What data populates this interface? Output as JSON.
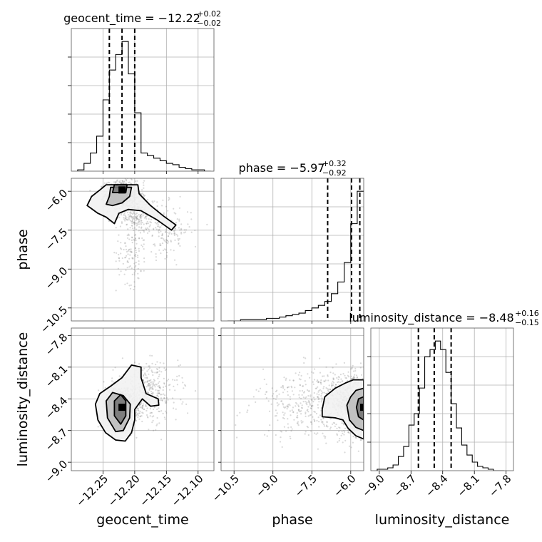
{
  "chart_data": {
    "type": "corner",
    "parameters": [
      "geocent_time",
      "phase",
      "luminosity_distance"
    ],
    "axis_labels": {
      "geocent_time": "geocent_time",
      "phase": "phase",
      "luminosity_distance": "luminosity_distance"
    },
    "ranges": {
      "geocent_time": [
        -12.3,
        -12.075
      ],
      "phase": [
        -11.0,
        -5.5
      ],
      "luminosity_distance": [
        -9.08,
        -7.73
      ]
    },
    "ticks": {
      "geocent_time": [
        "-12.25",
        "-12.20",
        "-12.15",
        "-12.10"
      ],
      "phase": [
        "-10.5",
        "-9.0",
        "-7.5",
        "-6.0"
      ],
      "luminosity_distance": [
        "-9.0",
        "-8.7",
        "-8.4",
        "-8.1",
        "-7.8"
      ]
    },
    "titles": [
      {
        "param": "geocent_time",
        "text": "geocent_time = −12.22",
        "plus": "+0.02",
        "minus": "−0.02",
        "median": -12.22,
        "q16": -12.24,
        "q84": -12.2
      },
      {
        "param": "phase",
        "text": "phase = −5.97",
        "plus": "+0.32",
        "minus": "−0.92",
        "median": -5.97,
        "q16": -6.89,
        "q84": -5.65
      },
      {
        "param": "luminosity_distance",
        "text": "luminosity_distance = −8.48",
        "plus": "+0.16",
        "minus": "−0.15",
        "median": -8.48,
        "q16": -8.63,
        "q84": -8.32
      }
    ],
    "histograms": {
      "geocent_time": {
        "bin_edges": [
          -12.29,
          -12.28,
          -12.27,
          -12.26,
          -12.25,
          -12.24,
          -12.23,
          -12.22,
          -12.21,
          -12.2,
          -12.19,
          -12.18,
          -12.17,
          -12.16,
          -12.15,
          -12.14,
          -12.13,
          -12.12,
          -12.11,
          -12.1,
          -12.09,
          -12.08
        ],
        "counts": [
          1,
          6,
          14,
          27,
          55,
          78,
          90,
          100,
          75,
          45,
          14,
          12,
          10,
          8,
          6,
          5,
          3,
          2,
          1,
          1,
          0
        ]
      },
      "phase": {
        "bin_edges": [
          -10.75,
          -10.5,
          -10.25,
          -10.0,
          -9.75,
          -9.5,
          -9.25,
          -9.0,
          -8.75,
          -8.5,
          -8.25,
          -8.0,
          -7.75,
          -7.5,
          -7.25,
          -7.0,
          -6.75,
          -6.5,
          -6.25,
          -6.0,
          -5.75,
          -5.5
        ],
        "counts": [
          0,
          0,
          1,
          1,
          1,
          1,
          2,
          2,
          3,
          4,
          5,
          6,
          8,
          10,
          12,
          15,
          21,
          30,
          45,
          75,
          100
        ]
      },
      "luminosity_distance": {
        "bin_edges": [
          -9.02,
          -8.97,
          -8.92,
          -8.87,
          -8.82,
          -8.77,
          -8.72,
          -8.67,
          -8.62,
          -8.57,
          -8.52,
          -8.47,
          -8.42,
          -8.37,
          -8.32,
          -8.27,
          -8.22,
          -8.17,
          -8.12,
          -8.07,
          -8.02,
          -7.97,
          -7.92,
          -7.87,
          -7.82
        ],
        "counts": [
          1,
          1,
          2,
          4,
          10,
          17,
          32,
          40,
          58,
          80,
          85,
          91,
          85,
          69,
          47,
          30,
          18,
          11,
          6,
          3,
          2,
          1,
          0,
          0
        ]
      }
    },
    "joint": [
      {
        "x": "geocent_time",
        "y": "phase",
        "peak": {
          "x": -12.22,
          "y": -5.95
        },
        "clusters": [
          {
            "cx": -12.222,
            "cy": -6.1,
            "sx": 0.012,
            "sy": 0.25,
            "weight": 0.55
          },
          {
            "cx": -12.2,
            "cy": -6.7,
            "sx": 0.016,
            "sy": 0.45,
            "weight": 0.25
          },
          {
            "cx": -12.205,
            "cy": -8.4,
            "sx": 0.012,
            "sy": 0.6,
            "weight": 0.08
          },
          {
            "cx": -12.15,
            "cy": -7.5,
            "sx": 0.02,
            "sy": 0.5,
            "weight": 0.12
          }
        ],
        "contours": [
          [
            [
              -12.275,
              -6.55
            ],
            [
              -12.268,
              -6.2
            ],
            [
              -12.255,
              -5.95
            ],
            [
              -12.245,
              -5.75
            ],
            [
              -12.195,
              -5.75
            ],
            [
              -12.193,
              -6.1
            ],
            [
              -12.175,
              -6.55
            ],
            [
              -12.155,
              -6.95
            ],
            [
              -12.135,
              -7.3
            ],
            [
              -12.142,
              -7.5
            ],
            [
              -12.165,
              -7.1
            ],
            [
              -12.19,
              -6.75
            ],
            [
              -12.21,
              -6.7
            ],
            [
              -12.225,
              -6.85
            ],
            [
              -12.232,
              -7.25
            ],
            [
              -12.245,
              -7.0
            ],
            [
              -12.258,
              -6.85
            ]
          ],
          [
            [
              -12.245,
              -6.5
            ],
            [
              -12.24,
              -6.2
            ],
            [
              -12.238,
              -5.85
            ],
            [
              -12.205,
              -5.85
            ],
            [
              -12.208,
              -6.2
            ],
            [
              -12.22,
              -6.45
            ],
            [
              -12.235,
              -6.55
            ]
          ],
          [
            [
              -12.235,
              -6.05
            ],
            [
              -12.232,
              -5.75
            ],
            [
              -12.212,
              -5.75
            ],
            [
              -12.214,
              -6.05
            ]
          ]
        ]
      },
      {
        "x": "geocent_time",
        "y": "luminosity_distance",
        "peak": {
          "x": -12.22,
          "y": -8.48
        },
        "clusters": [
          {
            "cx": -12.222,
            "cy": -8.48,
            "sx": 0.012,
            "sy": 0.1,
            "weight": 0.7
          },
          {
            "cx": -12.18,
            "cy": -8.35,
            "sx": 0.025,
            "sy": 0.14,
            "weight": 0.3
          }
        ],
        "contours": [
          [
            [
              -12.262,
              -8.45
            ],
            [
              -12.258,
              -8.6
            ],
            [
              -12.246,
              -8.72
            ],
            [
              -12.23,
              -8.79
            ],
            [
              -12.215,
              -8.8
            ],
            [
              -12.205,
              -8.72
            ],
            [
              -12.2,
              -8.6
            ],
            [
              -12.2,
              -8.5
            ],
            [
              -12.188,
              -8.4
            ],
            [
              -12.175,
              -8.47
            ],
            [
              -12.162,
              -8.46
            ],
            [
              -12.163,
              -8.4
            ],
            [
              -12.182,
              -8.35
            ],
            [
              -12.19,
              -8.2
            ],
            [
              -12.19,
              -8.1
            ],
            [
              -12.205,
              -8.08
            ],
            [
              -12.22,
              -8.2
            ],
            [
              -12.238,
              -8.28
            ],
            [
              -12.255,
              -8.35
            ]
          ],
          [
            [
              -12.245,
              -8.42
            ],
            [
              -12.243,
              -8.58
            ],
            [
              -12.23,
              -8.71
            ],
            [
              -12.218,
              -8.7
            ],
            [
              -12.208,
              -8.58
            ],
            [
              -12.207,
              -8.45
            ],
            [
              -12.218,
              -8.37
            ],
            [
              -12.235,
              -8.34
            ]
          ],
          [
            [
              -12.232,
              -8.42
            ],
            [
              -12.232,
              -8.56
            ],
            [
              -12.222,
              -8.64
            ],
            [
              -12.214,
              -8.56
            ],
            [
              -12.214,
              -8.42
            ],
            [
              -12.222,
              -8.36
            ]
          ]
        ]
      },
      {
        "x": "phase",
        "y": "luminosity_distance",
        "peak": {
          "x": -5.5,
          "y": -8.48
        },
        "clusters": [
          {
            "cx": -5.8,
            "cy": -8.45,
            "sx": 0.5,
            "sy": 0.13,
            "weight": 0.6
          },
          {
            "cx": -7.0,
            "cy": -8.45,
            "sx": 1.3,
            "sy": 0.16,
            "weight": 0.4
          }
        ],
        "contours": [
          [
            [
              -5.5,
              -8.22
            ],
            [
              -5.9,
              -8.22
            ],
            [
              -6.2,
              -8.25
            ],
            [
              -6.6,
              -8.3
            ],
            [
              -7.0,
              -8.38
            ],
            [
              -7.1,
              -8.5
            ],
            [
              -7.1,
              -8.57
            ],
            [
              -6.6,
              -8.58
            ],
            [
              -6.3,
              -8.6
            ],
            [
              -6.1,
              -8.68
            ],
            [
              -5.8,
              -8.75
            ],
            [
              -5.5,
              -8.78
            ]
          ],
          [
            [
              -5.5,
              -8.3
            ],
            [
              -5.8,
              -8.32
            ],
            [
              -6.0,
              -8.38
            ],
            [
              -6.15,
              -8.46
            ],
            [
              -6.05,
              -8.6
            ],
            [
              -5.8,
              -8.67
            ],
            [
              -5.5,
              -8.7
            ]
          ],
          [
            [
              -5.5,
              -8.38
            ],
            [
              -5.7,
              -8.4
            ],
            [
              -5.78,
              -8.48
            ],
            [
              -5.7,
              -8.57
            ],
            [
              -5.5,
              -8.6
            ]
          ]
        ]
      }
    ],
    "grid": true
  }
}
